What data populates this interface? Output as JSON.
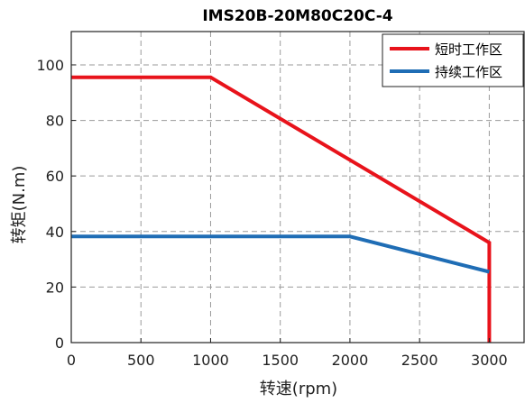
{
  "chart_data": {
    "type": "line",
    "title": "IMS20B-20M80C20C-4",
    "xlabel": "转速(rpm)",
    "ylabel": "转矩(N.m)",
    "xlim": [
      0,
      3250
    ],
    "ylim": [
      0,
      112
    ],
    "xticks": [
      0,
      500,
      1000,
      1500,
      2000,
      2500,
      3000
    ],
    "yticks": [
      0,
      20,
      40,
      60,
      80,
      100
    ],
    "grid": true,
    "grid_style": "dashed",
    "legend_position": "top-right",
    "series": [
      {
        "name": "短时工作区",
        "color": "#e8131b",
        "points": [
          [
            0,
            95.5
          ],
          [
            1000,
            95.5
          ],
          [
            3000,
            36
          ],
          [
            3000,
            0
          ]
        ]
      },
      {
        "name": "持续工作区",
        "color": "#1f6db5",
        "points": [
          [
            0,
            38.2
          ],
          [
            2000,
            38.2
          ],
          [
            3000,
            25.5
          ]
        ]
      }
    ]
  }
}
